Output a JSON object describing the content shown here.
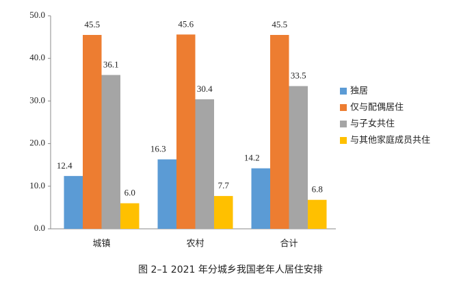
{
  "chart_data": {
    "type": "bar",
    "title": "图 2–1 2021 年分城乡我国老年人居住安排",
    "categories": [
      "城镇",
      "农村",
      "合计"
    ],
    "series": [
      {
        "name": "独居",
        "color": "#5b9bd5",
        "values": [
          12.4,
          16.3,
          14.2
        ],
        "value_labels": [
          "12.4",
          "16.3",
          "14.2"
        ]
      },
      {
        "name": "仅与配偶居住",
        "color": "#ed7d31",
        "values": [
          45.5,
          45.6,
          45.5
        ],
        "value_labels": [
          "45.5",
          "45.6",
          "45.5"
        ]
      },
      {
        "name": "与子女共住",
        "color": "#a5a5a5",
        "values": [
          36.1,
          30.4,
          33.5
        ],
        "value_labels": [
          "36.1",
          "30.4",
          "33.5"
        ]
      },
      {
        "name": "与其他家庭成员共住",
        "color": "#ffc000",
        "values": [
          6.0,
          7.7,
          6.8
        ],
        "value_labels": [
          "6.0",
          "7.7",
          "6.8"
        ]
      }
    ],
    "ylim": [
      0,
      50
    ],
    "yticks": [
      {
        "value": 0,
        "label": "0.0"
      },
      {
        "value": 10,
        "label": "10.0"
      },
      {
        "value": 20,
        "label": "20.0"
      },
      {
        "value": 30,
        "label": "30.0"
      },
      {
        "value": 40,
        "label": "40.0"
      },
      {
        "value": 50,
        "label": "50.0"
      }
    ],
    "legend": "right"
  }
}
